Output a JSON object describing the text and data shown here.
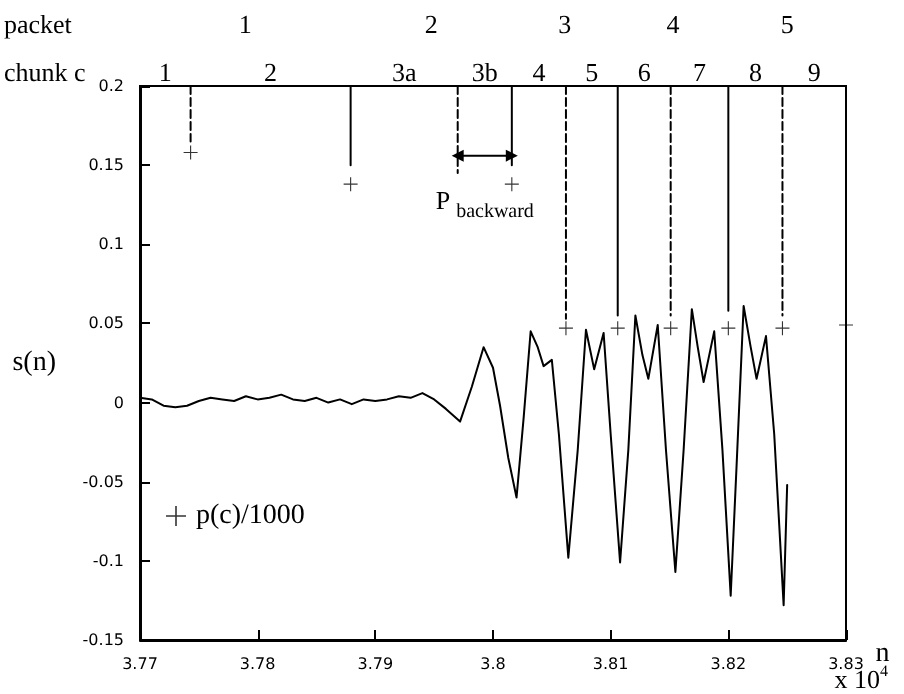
{
  "chart_data": {
    "type": "line",
    "xlabel": "n",
    "ylabel": "s(n)",
    "xlim": [
      3.77,
      3.83
    ],
    "xticks": [
      3.77,
      3.78,
      3.79,
      3.8,
      3.81,
      3.82,
      3.83
    ],
    "ylim": [
      -0.15,
      0.2
    ],
    "yticks": [
      -0.15,
      -0.1,
      -0.05,
      0,
      0.05,
      0.1,
      0.15,
      0.2
    ],
    "grid": false,
    "legend": "bottom left",
    "annotations": [
      "packet",
      "1",
      "2",
      "3",
      "4",
      "5",
      "chunk c",
      "1",
      "2",
      "3a",
      "3b",
      "4",
      "5",
      "6",
      "7",
      "8",
      "9",
      "x 10$^{4}$"
    ],
    "series": [
      {
        "color": "#000000",
        "line_style": "solid",
        "x": [
          3.77,
          3.771,
          3.772,
          3.773,
          3.774,
          3.775,
          3.776,
          3.777,
          3.778,
          3.779,
          3.78,
          3.781,
          3.782,
          3.783,
          3.784,
          3.785,
          3.786,
          3.787,
          3.788,
          3.789,
          3.79,
          3.791,
          3.792,
          3.793,
          3.794,
          3.795,
          3.796,
          3.7972,
          3.7982,
          3.7992,
          3.8,
          3.8006,
          3.8013,
          3.802,
          3.8026,
          3.8032,
          3.8038,
          3.8043,
          3.805,
          3.8056,
          3.8064,
          3.8072,
          3.8079,
          3.8086,
          3.8094,
          3.81,
          3.8108,
          3.8115,
          3.8121,
          3.8127,
          3.8132,
          3.814,
          3.8147,
          3.8155,
          3.8162,
          3.8169,
          3.8174,
          3.8179,
          3.8188,
          3.8195,
          3.8202,
          3.8207,
          3.8213,
          3.8219,
          3.8224,
          3.8232,
          3.8239,
          3.8247,
          3.825
        ],
        "values": [
          0.003,
          0.002,
          -0.002,
          -0.003,
          -0.002,
          0.001,
          0.003,
          0.002,
          0.001,
          0.004,
          0.002,
          0.003,
          0.005,
          0.002,
          0.001,
          0.003,
          0,
          0.002,
          -0.001,
          0.002,
          0.001,
          0.002,
          0.004,
          0.003,
          0.006,
          0.002,
          -0.004,
          -0.012,
          0.01,
          0.035,
          0.022,
          -0.002,
          -0.035,
          -0.06,
          -0.01,
          0.045,
          0.035,
          0.023,
          0.027,
          -0.02,
          -0.098,
          -0.03,
          0.046,
          0.021,
          0.044,
          -0.02,
          -0.101,
          -0.03,
          0.055,
          0.03,
          0.015,
          0.049,
          -0.03,
          -0.107,
          -0.03,
          0.059,
          0.035,
          0.013,
          0.045,
          -0.03,
          -0.122,
          -0.04,
          0.061,
          0.035,
          0.015,
          0.042,
          -0.02,
          -0.128,
          -0.052
        ]
      },
      {
        "color": "#000000",
        "line_style": "dashed",
        "x": [
          3.7743,
          3.7743
        ],
        "values": [
          0.2,
          0.165
        ]
      },
      {
        "color": "#000000",
        "line_style": "solid",
        "x": [
          3.7879,
          3.7879
        ],
        "values": [
          0.2,
          0.15
        ]
      },
      {
        "color": "#000000",
        "line_style": "dashed",
        "x": [
          3.797,
          3.797
        ],
        "values": [
          0.2,
          0.145
        ]
      },
      {
        "color": "#000000",
        "line_style": "solid",
        "x": [
          3.8016,
          3.8016
        ],
        "values": [
          0.2,
          0.15
        ]
      },
      {
        "color": "#000000",
        "line_style": "dashed",
        "x": [
          3.8062,
          3.8062
        ],
        "values": [
          0.2,
          0.053
        ]
      },
      {
        "color": "#000000",
        "line_style": "solid",
        "x": [
          3.8106,
          3.8106
        ],
        "values": [
          0.2,
          0.055
        ]
      },
      {
        "color": "#000000",
        "line_style": "dashed",
        "x": [
          3.8151,
          3.8151
        ],
        "values": [
          0.2,
          0.055
        ]
      },
      {
        "color": "#000000",
        "line_style": "solid",
        "x": [
          3.82,
          3.82
        ],
        "values": [
          0.2,
          0.058
        ]
      },
      {
        "color": "#000000",
        "line_style": "dashed",
        "x": [
          3.8246,
          3.8246
        ],
        "values": [
          0.2,
          0.055
        ]
      },
      {
        "name": "P$_{backward}$",
        "color": "#000000",
        "line_style": "solid",
        "marker": "triangle",
        "x": [
          3.797,
          3.8016
        ],
        "values": [
          0.156,
          0.156
        ]
      },
      {
        "type": "scatter",
        "name": "p(c)/1000",
        "color": "#000000",
        "marker": "cross",
        "x": [
          3.7743,
          3.7879,
          3.8016,
          3.8062,
          3.8106,
          3.8151,
          3.82,
          3.8246,
          3.83
        ],
        "values": [
          0.158,
          0.138,
          0.138,
          0.047,
          0.047,
          0.047,
          0.047,
          0.047,
          0.049
        ]
      }
    ]
  }
}
